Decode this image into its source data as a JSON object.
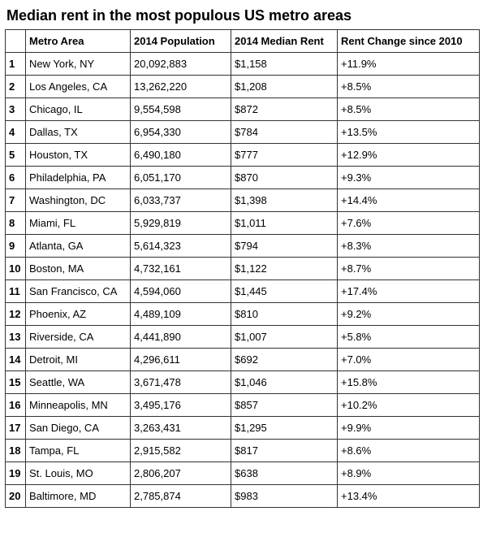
{
  "chart_data": {
    "type": "table",
    "title": "Median rent in the most populous US metro areas",
    "columns": [
      "",
      "Metro Area",
      "2014 Population",
      "2014 Median Rent",
      "Rent Change since 2010"
    ],
    "rows": [
      [
        "1",
        "New York, NY",
        "20,092,883",
        "$1,158",
        "+11.9%"
      ],
      [
        "2",
        "Los Angeles, CA",
        "13,262,220",
        "$1,208",
        "+8.5%"
      ],
      [
        "3",
        "Chicago, IL",
        "9,554,598",
        "$872",
        "+8.5%"
      ],
      [
        "4",
        "Dallas, TX",
        "6,954,330",
        "$784",
        "+13.5%"
      ],
      [
        "5",
        "Houston, TX",
        "6,490,180",
        "$777",
        "+12.9%"
      ],
      [
        "6",
        "Philadelphia, PA",
        "6,051,170",
        "$870",
        "+9.3%"
      ],
      [
        "7",
        "Washington, DC",
        "6,033,737",
        "$1,398",
        "+14.4%"
      ],
      [
        "8",
        "Miami, FL",
        "5,929,819",
        "$1,011",
        "+7.6%"
      ],
      [
        "9",
        "Atlanta, GA",
        "5,614,323",
        "$794",
        "+8.3%"
      ],
      [
        "10",
        "Boston, MA",
        "4,732,161",
        "$1,122",
        "+8.7%"
      ],
      [
        "11",
        "San Francisco, CA",
        "4,594,060",
        "$1,445",
        "+17.4%"
      ],
      [
        "12",
        "Phoenix, AZ",
        "4,489,109",
        "$810",
        "+9.2%"
      ],
      [
        "13",
        "Riverside, CA",
        "4,441,890",
        "$1,007",
        "+5.8%"
      ],
      [
        "14",
        "Detroit, MI",
        "4,296,611",
        "$692",
        "+7.0%"
      ],
      [
        "15",
        "Seattle, WA",
        "3,671,478",
        "$1,046",
        "+15.8%"
      ],
      [
        "16",
        "Minneapolis, MN",
        "3,495,176",
        "$857",
        "+10.2%"
      ],
      [
        "17",
        "San Diego, CA",
        "3,263,431",
        "$1,295",
        "+9.9%"
      ],
      [
        "18",
        "Tampa, FL",
        "2,915,582",
        "$817",
        "+8.6%"
      ],
      [
        "19",
        "St. Louis, MO",
        "2,806,207",
        "$638",
        "+8.9%"
      ],
      [
        "20",
        "Baltimore, MD",
        "2,785,874",
        "$983",
        "+13.4%"
      ]
    ]
  }
}
